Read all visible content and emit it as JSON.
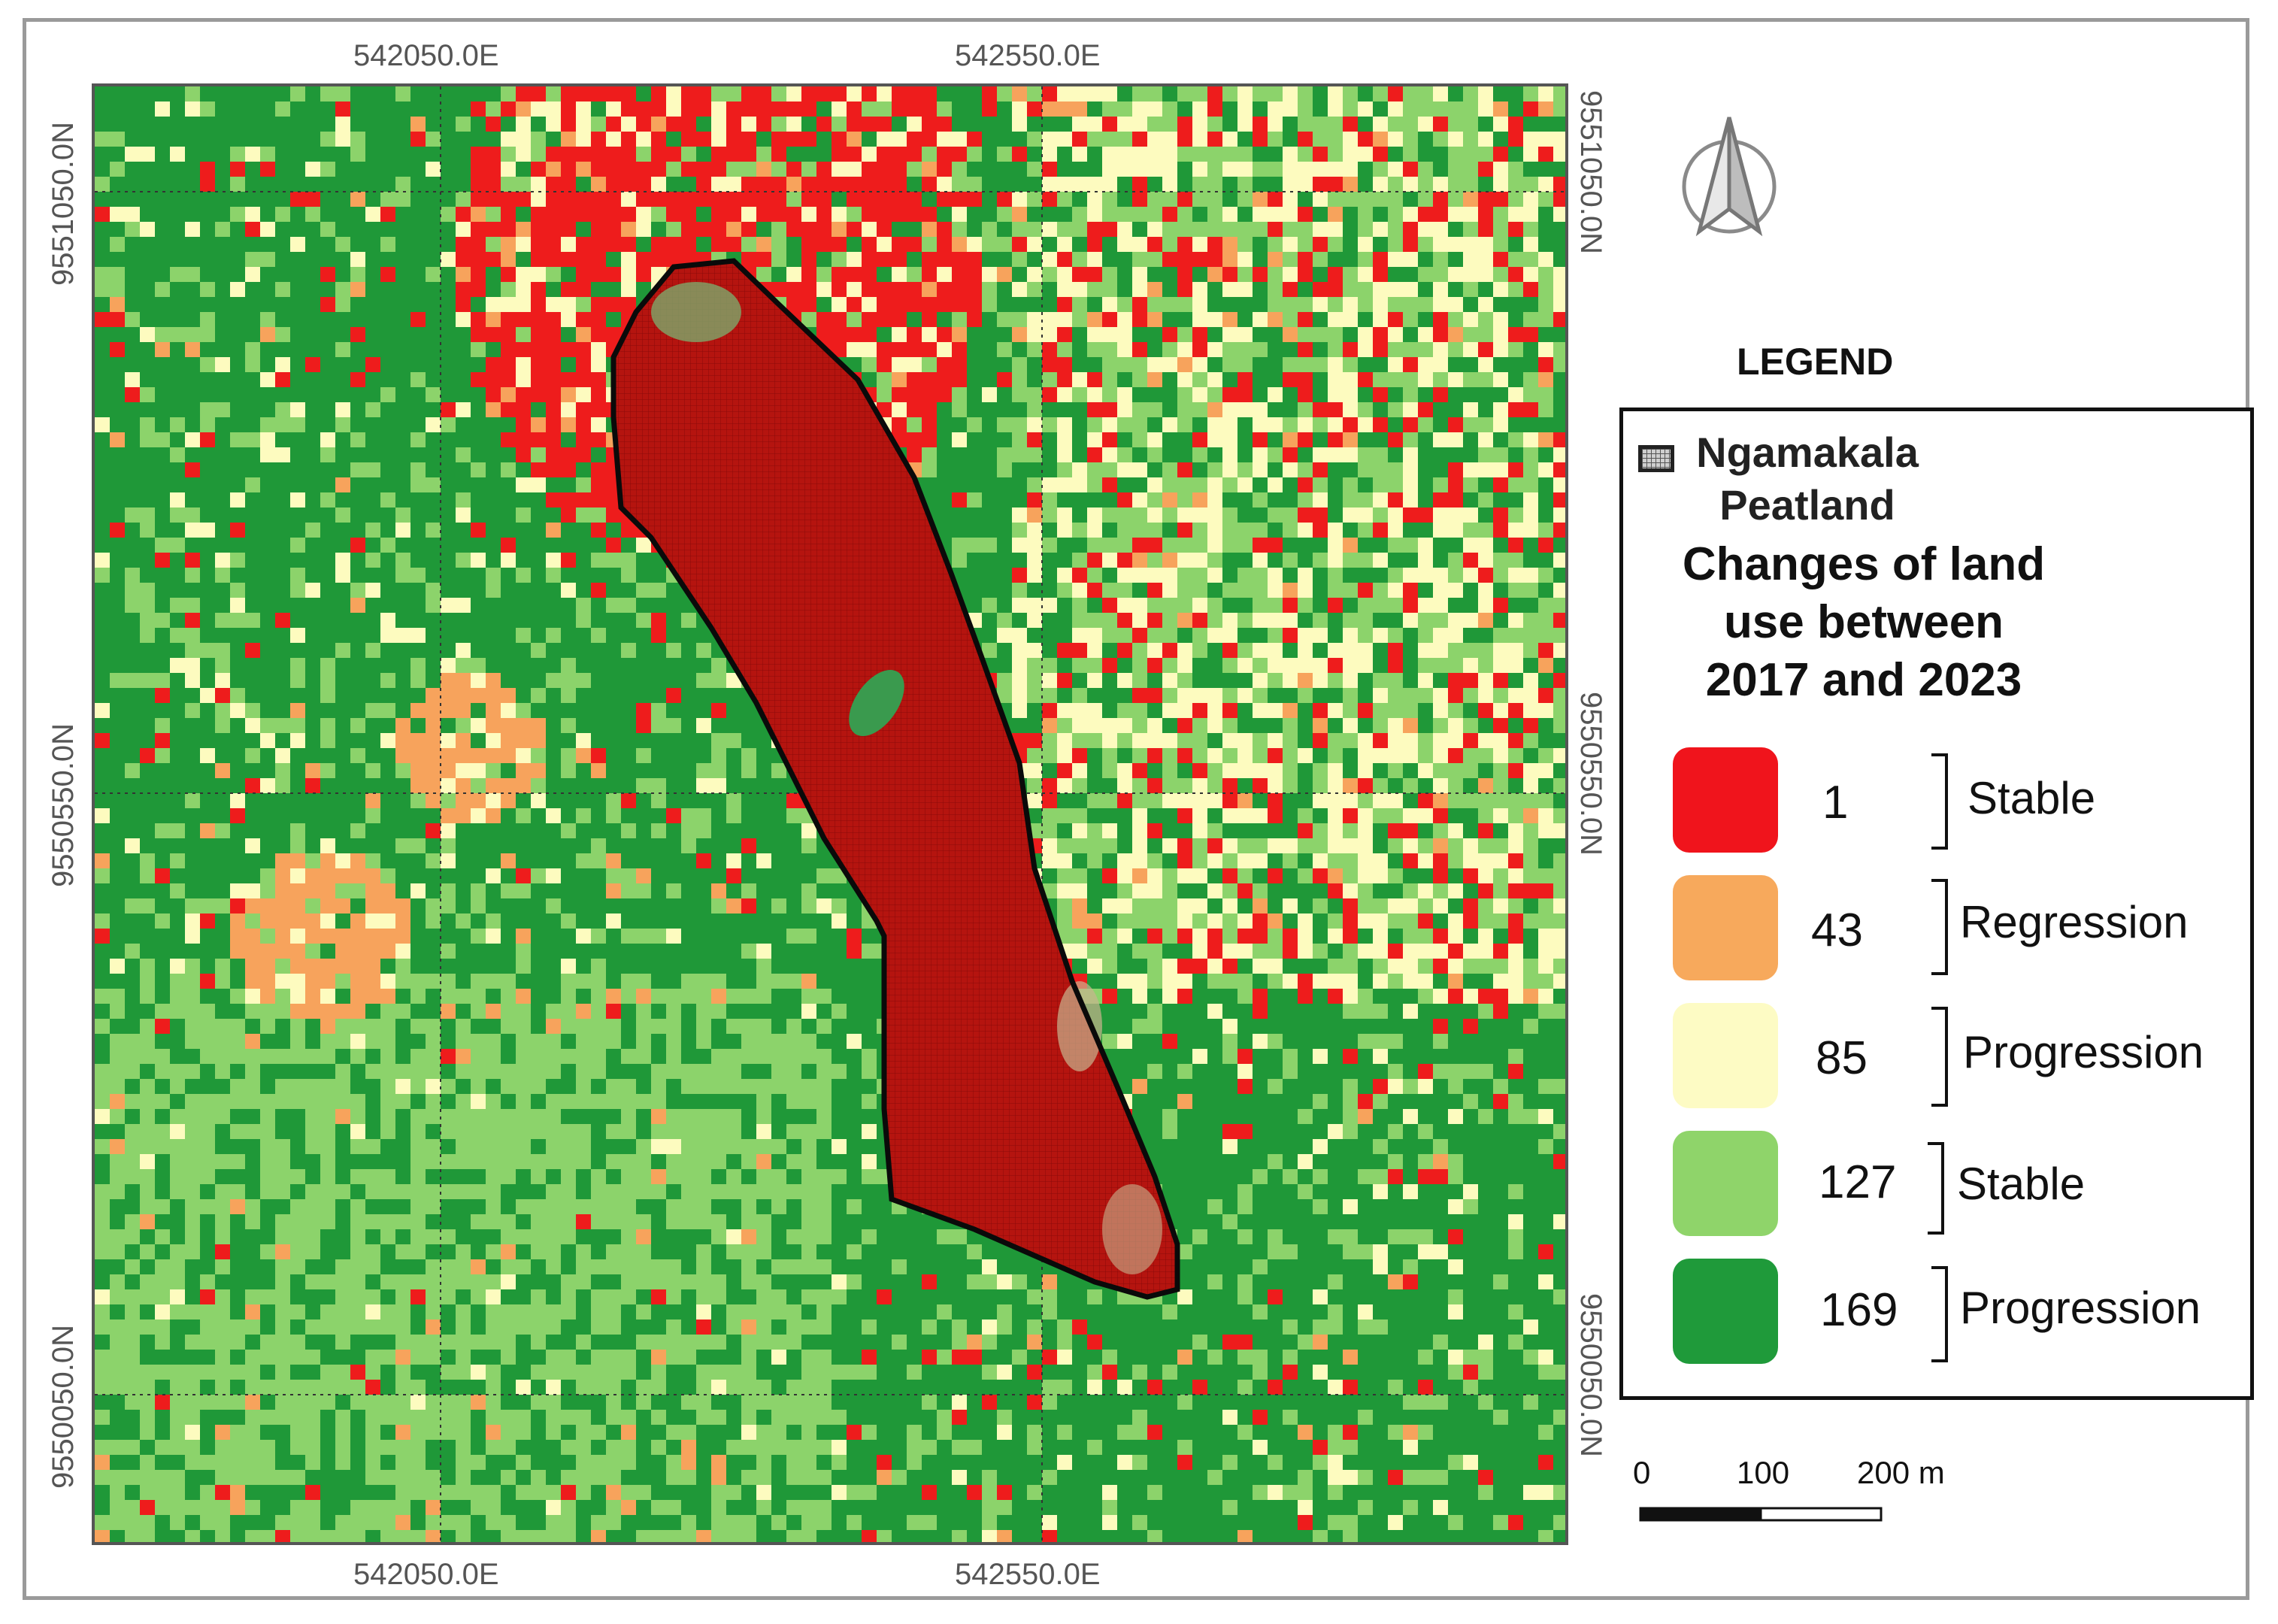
{
  "map": {
    "coordinates": {
      "top_easting": [
        "542050.0E",
        "542550.0E"
      ],
      "bottom_easting": [
        "542050.0E",
        "542550.0E"
      ],
      "left_northing": [
        "9551050.0N",
        "9550550.0N",
        "9550050.0N"
      ],
      "right_northing": [
        "9551050.0N",
        "9550550.0N",
        "9550050.0N"
      ]
    },
    "peatland_color": "#b5140f",
    "land_colors": [
      "#ee1c1c",
      "#f7a35c",
      "#fdfbbf",
      "#8cd36b",
      "#1f9838"
    ]
  },
  "legend": {
    "title": "LEGEND",
    "peatland_label": [
      "Ngamakala",
      "Peatland"
    ],
    "changes_title": [
      "Changes of land",
      "use between",
      "2017 and 2023"
    ],
    "classes": [
      {
        "value": "1",
        "label": "Stable",
        "color": "#f0141c"
      },
      {
        "value": "43",
        "label": "Regression",
        "color": "#f7a95c"
      },
      {
        "value": "85",
        "label": "Progression",
        "color": "#fdfbc4"
      },
      {
        "value": "127",
        "label": "Stable",
        "color": "#8fd46a"
      },
      {
        "value": "169",
        "label": "Progression",
        "color": "#1f9a3a"
      }
    ]
  },
  "scale_bar": {
    "labels": [
      "0",
      "100",
      "200 m"
    ]
  },
  "north_arrow": {
    "icon": "north-arrow-icon"
  }
}
